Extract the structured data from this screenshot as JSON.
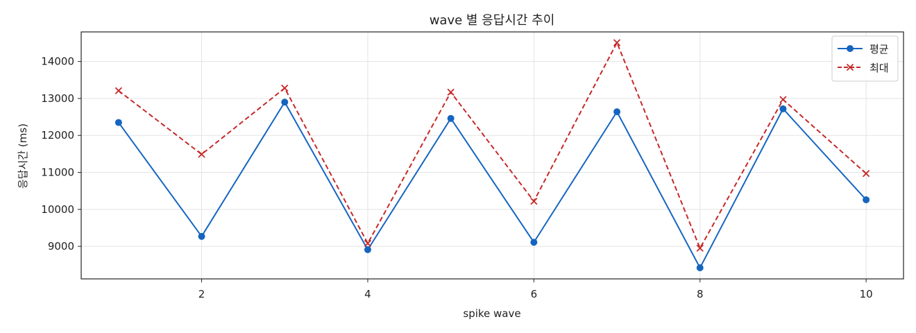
{
  "chart_data": {
    "type": "line",
    "title": "wave 별 응답시간 추이",
    "xlabel": "spike wave",
    "ylabel": "응답시간 (ms)",
    "x": [
      1,
      2,
      3,
      4,
      5,
      6,
      7,
      8,
      9,
      10
    ],
    "xticks": [
      2,
      4,
      6,
      8,
      10
    ],
    "yticks": [
      9000,
      10000,
      11000,
      12000,
      13000,
      14000
    ],
    "xlim": [
      0.55,
      10.45
    ],
    "ylim": [
      8120,
      14800
    ],
    "grid": true,
    "legend_position": "top-right",
    "series": [
      {
        "name": "평균",
        "color": "#1565c0",
        "line_style": "solid",
        "marker": "circle",
        "values": [
          12350,
          9270,
          12900,
          8910,
          12460,
          9110,
          12640,
          8420,
          12720,
          10260
        ]
      },
      {
        "name": "최대",
        "color": "#c62828",
        "line_style": "dashed",
        "marker": "x",
        "values": [
          13210,
          11490,
          13280,
          9080,
          13170,
          10220,
          14510,
          8950,
          12970,
          10970
        ]
      }
    ]
  }
}
